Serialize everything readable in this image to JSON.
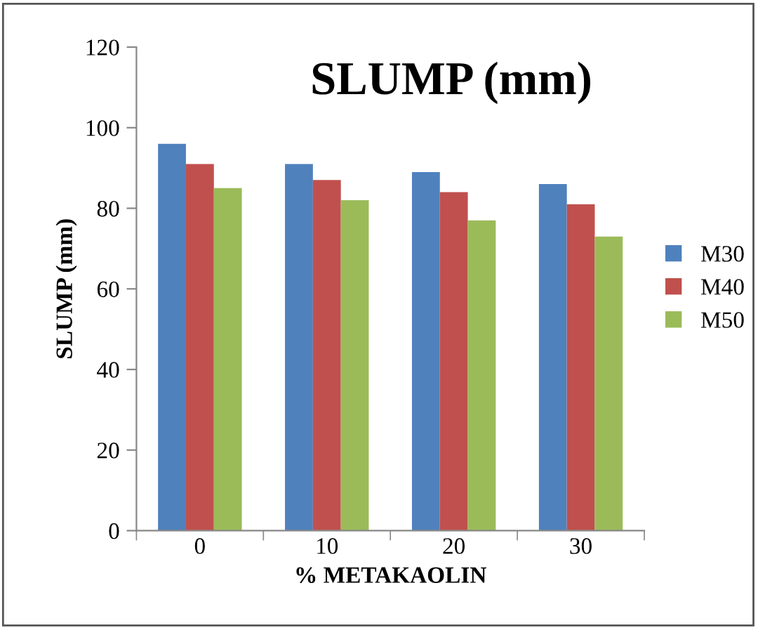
{
  "chart_data": {
    "type": "bar",
    "title": "SLUMP (mm)",
    "xlabel": "% METAKAOLIN",
    "ylabel": "SLUMP (mm)",
    "categories": [
      "0",
      "10",
      "20",
      "30"
    ],
    "series": [
      {
        "name": "M30",
        "color": "#4f81bd",
        "values": [
          96,
          91,
          89,
          86
        ]
      },
      {
        "name": "M40",
        "color": "#c0504d",
        "values": [
          91,
          87,
          84,
          81
        ]
      },
      {
        "name": "M50",
        "color": "#9bbb59",
        "values": [
          85,
          82,
          77,
          73
        ]
      }
    ],
    "ylim": [
      0,
      120
    ],
    "yticks": [
      0,
      20,
      40,
      60,
      80,
      100,
      120
    ],
    "grid": false,
    "legend": "right"
  }
}
